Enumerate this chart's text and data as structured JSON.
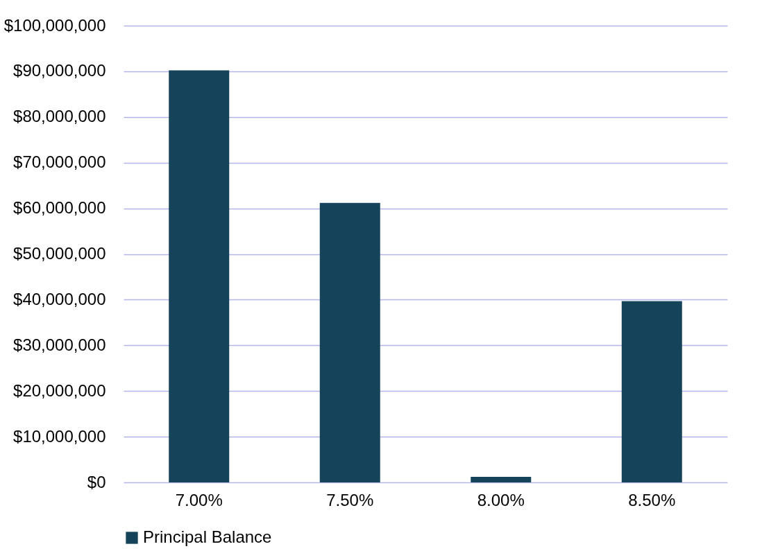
{
  "chart_data": {
    "type": "bar",
    "categories": [
      "7.00%",
      "7.50%",
      "8.00%",
      "8.50%"
    ],
    "series": [
      {
        "name": "Principal Balance",
        "color": "#154359",
        "values": [
          90200000,
          61200000,
          1200000,
          39700000
        ]
      }
    ],
    "ylim": [
      0,
      100000000
    ],
    "yticks": [
      {
        "value": 0,
        "label": "$0"
      },
      {
        "value": 10000000,
        "label": "$10,000,000"
      },
      {
        "value": 20000000,
        "label": "$20,000,000"
      },
      {
        "value": 30000000,
        "label": "$30,000,000"
      },
      {
        "value": 40000000,
        "label": "$40,000,000"
      },
      {
        "value": 50000000,
        "label": "$50,000,000"
      },
      {
        "value": 60000000,
        "label": "$60,000,000"
      },
      {
        "value": 70000000,
        "label": "$70,000,000"
      },
      {
        "value": 80000000,
        "label": "$80,000,000"
      },
      {
        "value": 90000000,
        "label": "$90,000,000"
      },
      {
        "value": 100000000,
        "label": "$100,000,000"
      }
    ],
    "grid": "y",
    "legend": "bottom"
  }
}
